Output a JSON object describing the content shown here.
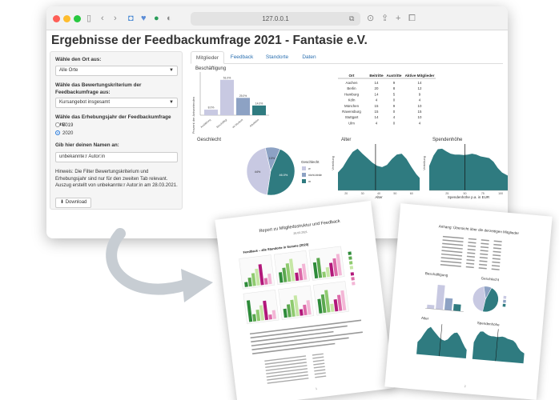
{
  "browser": {
    "url": "127.0.0.1"
  },
  "app": {
    "title": "Ergebnisse der Feedbackumfrage 2021 - Fantasie e.V.",
    "sidebar": {
      "ort_label": "Wähle den Ort aus:",
      "ort_value": "Alle Orte",
      "kriterium_label": "Wähle das Bewertungskriterium der Feedbackumfrage aus:",
      "kriterium_value": "Kursangebot insgesamt",
      "jahr_label": "Wähle das Erhebungsjahr der Feedbackumfrage aus:",
      "jahr_options": [
        "2019",
        "2020"
      ],
      "jahr_selected": "2020",
      "name_label": "Gib hier deinen Namen an:",
      "name_value": "unbekannte:r Autor:in",
      "hint": "Hinweis: Die Filter Bewertungskriterium und Erhebungsjahr sind nur für den zweiten Tab relevant. Auszug erstellt von unbekannte:r Autor:in am 28.03.2021.",
      "download_label": "Download"
    },
    "tabs": [
      "Mitglieder",
      "Feedback",
      "Standorte",
      "Daten"
    ],
    "active_tab": "Mitglieder"
  },
  "colors": {
    "teal": "#2f7b80",
    "lavender": "#c8c9e2",
    "slate": "#8da2c4",
    "browser_bar": "#f2f2f2",
    "link": "#2a6fb0"
  },
  "chart_data": [
    {
      "type": "bar",
      "title": "Beschäftigung",
      "ylabel": "Prozent der Antwortenden",
      "categories": [
        "Ausbildung",
        "Beschäftigt",
        "im Studium",
        "Arbeitslos"
      ],
      "values": [
        8.0,
        51.0,
        25.0,
        14.0
      ],
      "labels": [
        "8.0%",
        "51.0%",
        "25.0%",
        "14.0%"
      ],
      "ylim": [
        0,
        60
      ]
    },
    {
      "type": "table",
      "columns": [
        "Ort",
        "Beitritte",
        "Austritte",
        "Aktive Mitglieder"
      ],
      "rows": [
        [
          "Aachen",
          "14",
          "9",
          "14"
        ],
        [
          "Berlin",
          "20",
          "8",
          "12"
        ],
        [
          "Hamburg",
          "14",
          "5",
          "9"
        ],
        [
          "Köln",
          "4",
          "0",
          "4"
        ],
        [
          "München",
          "15",
          "9",
          "10"
        ],
        [
          "Ravensburg",
          "15",
          "0",
          "15"
        ],
        [
          "Stuttgart",
          "14",
          "4",
          "10"
        ],
        [
          "Ulm",
          "4",
          "0",
          "4"
        ]
      ]
    },
    {
      "type": "pie",
      "title": "Geschlecht",
      "legend_title": "Geschlecht",
      "categories": [
        "w",
        "nicht-binär",
        "m"
      ],
      "values": [
        44.0,
        10.0,
        46.0
      ],
      "labels": [
        "44%",
        "10%",
        "46.0%"
      ]
    },
    {
      "type": "area",
      "title": "Alter",
      "xlabel": "Alter",
      "ylabel": "Verteilung",
      "xticks": [
        "20",
        "30",
        "40",
        "50",
        "60"
      ],
      "xlim": [
        15,
        65
      ],
      "x": [
        15,
        18,
        21,
        24,
        27,
        30,
        33,
        36,
        39,
        42,
        45,
        48,
        51,
        54,
        57,
        60,
        63,
        65
      ],
      "y": [
        0.4,
        0.52,
        0.7,
        0.86,
        0.93,
        0.82,
        0.72,
        0.62,
        0.55,
        0.52,
        0.57,
        0.7,
        0.8,
        0.82,
        0.7,
        0.52,
        0.36,
        0.28
      ],
      "marker": 38
    },
    {
      "type": "area",
      "title": "Spendenhöhe",
      "xlabel": "Spendenhöhe p.a. in EUR",
      "ylabel": "Verteilung",
      "xticks": [
        "25",
        "50",
        "75",
        "100"
      ],
      "xlim": [
        0,
        110
      ],
      "x": [
        0,
        6,
        12,
        18,
        24,
        30,
        36,
        42,
        48,
        54,
        60,
        66,
        72,
        78,
        84,
        90,
        96,
        102,
        110
      ],
      "y": [
        0.55,
        0.78,
        0.92,
        0.93,
        0.87,
        0.82,
        0.8,
        0.8,
        0.79,
        0.8,
        0.82,
        0.8,
        0.76,
        0.74,
        0.72,
        0.64,
        0.5,
        0.4,
        0.33
      ],
      "marker": 50
    }
  ],
  "papers": {
    "report_title": "Report zu Mitgliedsstruktur und Feedback",
    "report_date": "28.03.2021",
    "report_chart_title": "Feedback – alle Standorte in Summe (2020)",
    "report_page": "1",
    "annex_title": "Anhang: Übersicht über die derzeitigen Mitglieder",
    "annex_page": "2",
    "annex_bar_title": "Beschäftigung",
    "annex_pie_title": "Geschlecht",
    "annex_alter_title": "Alter",
    "annex_spende_title": "Spendenhöhe"
  }
}
